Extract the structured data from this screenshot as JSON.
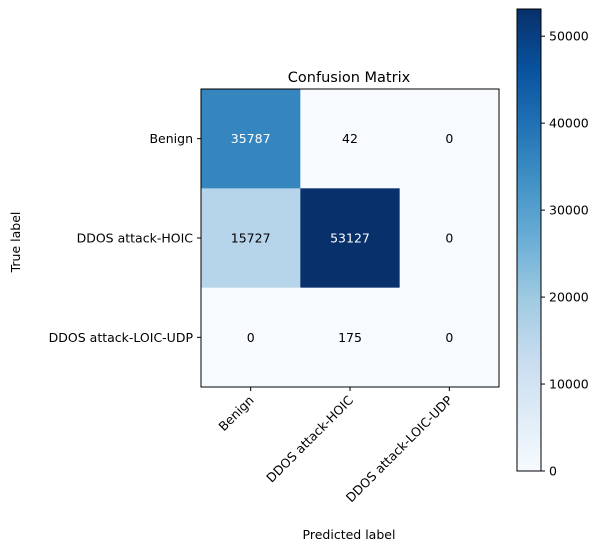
{
  "chart_data": {
    "type": "heatmap",
    "title": "Confusion Matrix",
    "xlabel": "Predicted label",
    "ylabel": "True label",
    "x_categories": [
      "Benign",
      "DDOS attack-HOIC",
      "DDOS attack-LOIC-UDP"
    ],
    "y_categories": [
      "Benign",
      "DDOS attack-HOIC",
      "DDOS attack-LOIC-UDP"
    ],
    "values": [
      [
        35787,
        42,
        0
      ],
      [
        15727,
        53127,
        0
      ],
      [
        0,
        175,
        0
      ]
    ],
    "colormap": "Blues",
    "colorbar": {
      "min": 0,
      "max": 53127,
      "ticks": [
        0,
        10000,
        20000,
        30000,
        40000,
        50000
      ]
    },
    "grid": false
  }
}
